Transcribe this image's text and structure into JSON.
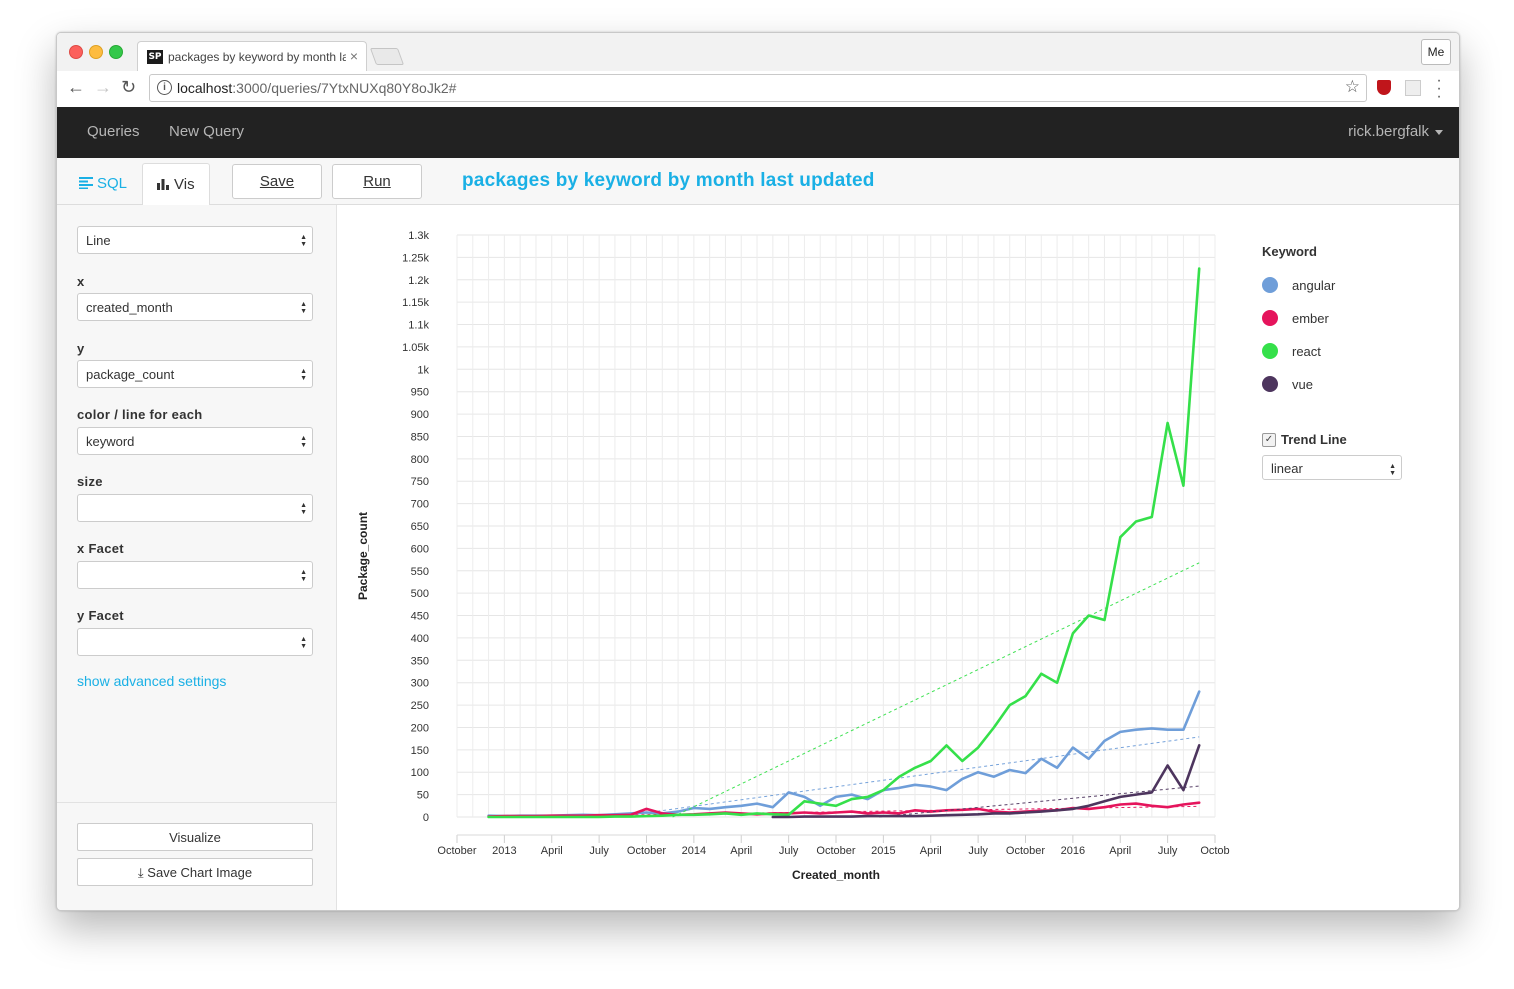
{
  "browser": {
    "tab_title": "packages by keyword by month last updated",
    "tab_icon": "SP",
    "tab_close": "×",
    "url_host": "localhost",
    "url_rest": ":3000/queries/7YtxNUXq80Y8oJk2#",
    "profile_button": "Me"
  },
  "nav": {
    "queries": "Queries",
    "new_query": "New Query",
    "user": "rick.bergfalk"
  },
  "toolbar": {
    "sql_tab": "SQL",
    "vis_tab": "Vis",
    "save": "Save",
    "run": "Run",
    "query_title": "packages by keyword by month last updated"
  },
  "sidebar": {
    "chart_type": "Line",
    "x_label": "x",
    "x_value": "created_month",
    "y_label": "y",
    "y_value": "package_count",
    "color_label": "color / line for each",
    "color_value": "keyword",
    "size_label": "size",
    "size_value": "",
    "xfacet_label": "x Facet",
    "xfacet_value": "",
    "yfacet_label": "y Facet",
    "yfacet_value": "",
    "advanced_link": "show advanced settings",
    "visualize_button": "Visualize",
    "save_image_button": "Save Chart Image"
  },
  "legend": {
    "title": "Keyword",
    "trend_label": "Trend Line",
    "trend_checked": true,
    "trend_value": "linear"
  },
  "chart_data": {
    "type": "line",
    "xlabel": "Created_month",
    "ylabel": "Package_count",
    "ylim": [
      0,
      1300
    ],
    "y_ticks": [
      "0",
      "50",
      "100",
      "150",
      "200",
      "250",
      "300",
      "350",
      "400",
      "450",
      "500",
      "550",
      "600",
      "650",
      "700",
      "750",
      "800",
      "850",
      "900",
      "950",
      "1k",
      "1.05k",
      "1.1k",
      "1.15k",
      "1.2k",
      "1.25k",
      "1.3k"
    ],
    "x_ticks": [
      "October",
      "2013",
      "April",
      "July",
      "October",
      "2014",
      "April",
      "July",
      "October",
      "2015",
      "April",
      "July",
      "October",
      "2016",
      "April",
      "July",
      "Octob"
    ],
    "x_tick_months": [
      0,
      3,
      6,
      9,
      12,
      15,
      18,
      21,
      24,
      27,
      30,
      33,
      36,
      39,
      42,
      45,
      48
    ],
    "x_range_months": [
      0,
      48
    ],
    "x_origin_month": "2012-10",
    "grid": true,
    "trend_line": "linear",
    "series": [
      {
        "name": "angular",
        "color": "#6f9ed9",
        "x": [
          2,
          3,
          4,
          5,
          6,
          7,
          8,
          9,
          10,
          11,
          12,
          13,
          14,
          15,
          16,
          17,
          18,
          19,
          20,
          21,
          22,
          23,
          24,
          25,
          26,
          27,
          28,
          29,
          30,
          31,
          32,
          33,
          34,
          35,
          36,
          37,
          38,
          39,
          40,
          41,
          42,
          43,
          44,
          45,
          46,
          47
        ],
        "values": [
          3,
          2,
          3,
          3,
          3,
          4,
          5,
          4,
          6,
          8,
          10,
          8,
          12,
          20,
          18,
          22,
          25,
          30,
          22,
          55,
          45,
          25,
          45,
          50,
          40,
          60,
          65,
          72,
          68,
          60,
          85,
          100,
          90,
          105,
          98,
          130,
          110,
          155,
          130,
          170,
          190,
          195,
          198,
          195,
          195,
          280
        ]
      },
      {
        "name": "ember",
        "color": "#e5145c",
        "x": [
          2,
          3,
          4,
          5,
          6,
          7,
          8,
          9,
          10,
          11,
          12,
          13,
          14,
          15,
          16,
          17,
          18,
          19,
          20,
          21,
          22,
          23,
          24,
          25,
          26,
          27,
          28,
          29,
          30,
          31,
          32,
          33,
          34,
          35,
          36,
          37,
          38,
          39,
          40,
          41,
          42,
          43,
          44,
          45,
          46,
          47
        ],
        "values": [
          1,
          2,
          2,
          2,
          3,
          3,
          3,
          4,
          4,
          5,
          18,
          8,
          5,
          6,
          8,
          10,
          8,
          6,
          8,
          8,
          10,
          8,
          10,
          12,
          8,
          10,
          8,
          15,
          12,
          15,
          16,
          18,
          12,
          10,
          12,
          14,
          15,
          20,
          18,
          22,
          28,
          30,
          25,
          22,
          28,
          32
        ]
      },
      {
        "name": "react",
        "color": "#35e04a",
        "x": [
          2,
          3,
          4,
          5,
          6,
          7,
          8,
          9,
          10,
          11,
          12,
          13,
          14,
          15,
          16,
          17,
          18,
          19,
          20,
          21,
          22,
          23,
          24,
          25,
          26,
          27,
          28,
          29,
          30,
          31,
          32,
          33,
          34,
          35,
          36,
          37,
          38,
          39,
          40,
          41,
          42,
          43,
          44,
          45,
          46,
          47
        ],
        "values": [
          0,
          0,
          0,
          0,
          0,
          0,
          0,
          0,
          1,
          1,
          2,
          3,
          5,
          5,
          6,
          8,
          5,
          8,
          6,
          5,
          35,
          30,
          25,
          40,
          45,
          60,
          90,
          110,
          125,
          160,
          125,
          155,
          200,
          250,
          270,
          320,
          300,
          410,
          450,
          440,
          625,
          660,
          670,
          880,
          740,
          1225
        ]
      },
      {
        "name": "vue",
        "color": "#4d355e",
        "x": [
          20,
          21,
          22,
          23,
          24,
          25,
          26,
          27,
          28,
          29,
          30,
          31,
          32,
          33,
          34,
          35,
          36,
          37,
          38,
          39,
          40,
          41,
          42,
          43,
          44,
          45,
          46,
          47
        ],
        "values": [
          0,
          0,
          1,
          1,
          1,
          1,
          2,
          2,
          2,
          2,
          3,
          4,
          5,
          6,
          8,
          8,
          10,
          12,
          15,
          18,
          25,
          35,
          45,
          50,
          55,
          115,
          60,
          160
        ]
      }
    ]
  }
}
